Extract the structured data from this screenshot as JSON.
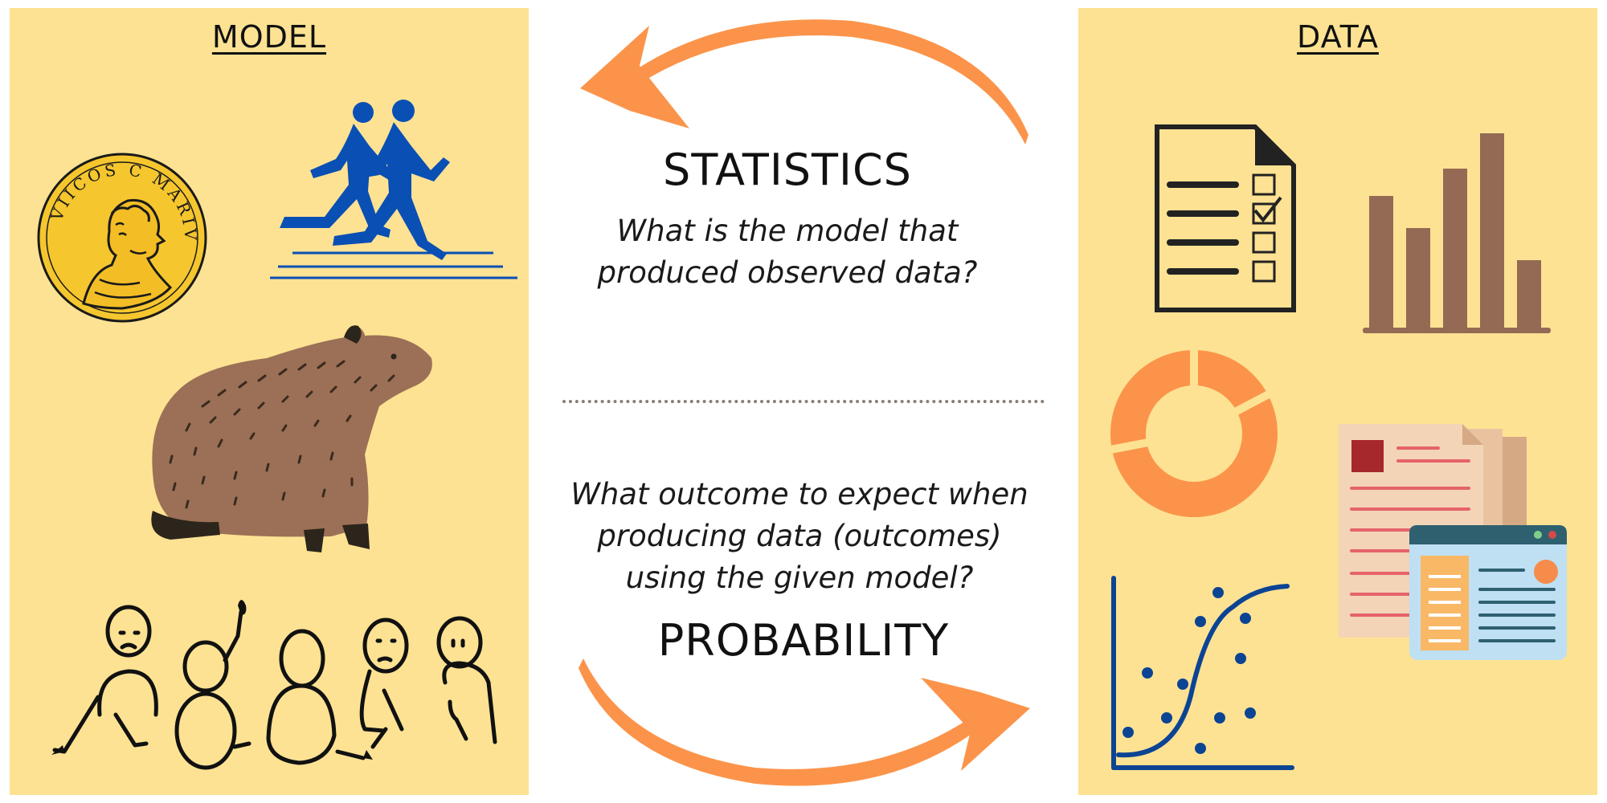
{
  "model_panel": {
    "title": "MODEL",
    "coin_inscription": "VIICOS C MARIVS"
  },
  "data_panel": {
    "title": "DATA"
  },
  "statistics": {
    "heading": "STATISTICS",
    "question_line1": "What is the model that",
    "question_line2": "produced observed data?"
  },
  "probability": {
    "heading": "PROBABILITY",
    "question_line1": "What outcome to expect when",
    "question_line2": "producing data (outcomes)",
    "question_line3": "using the given model?"
  },
  "colors": {
    "panel_background": "#fde293",
    "arrow": "#fb944a",
    "coin_gold": "#f5c62e",
    "runner_blue": "#0a4fb4",
    "capybara_brown": "#9b7056",
    "chart_brown": "#946a55",
    "scatter_blue": "#0c4494",
    "document_red": "#a6272c"
  },
  "icons": [
    "gold-coin-icon",
    "runners-icon",
    "capybara-icon",
    "people-group-icon",
    "checklist-document-icon",
    "bar-chart-icon",
    "donut-chart-icon",
    "scatter-plot-icon",
    "documents-icon",
    "browser-window-icon",
    "arrow-to-model-icon",
    "arrow-to-data-icon"
  ]
}
